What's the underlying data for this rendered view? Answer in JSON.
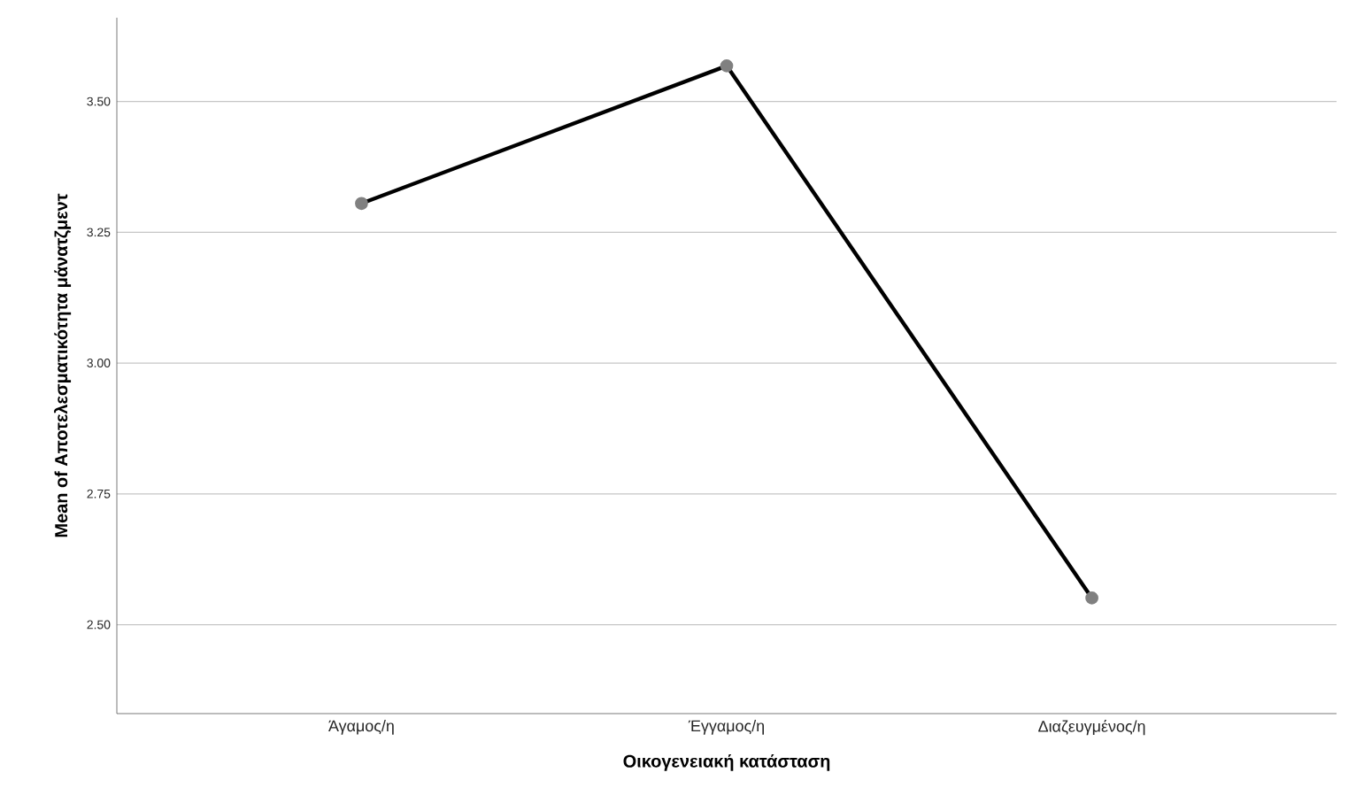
{
  "chart_data": {
    "type": "line",
    "xlabel": "Οικογενειακή κατάσταση",
    "ylabel": "Mean of Αποτελεσματικότητα μάνατζμεντ",
    "categories": [
      "Άγαμος/η",
      "Έγγαμος/η",
      "Διαζευγμένος/η"
    ],
    "series": [
      {
        "color": "#000000",
        "values": [
          3.305,
          3.568,
          2.551
        ]
      }
    ],
    "ylim": [
      2.33,
      3.66
    ],
    "yticks": [
      {
        "value": 2.5,
        "label": "2.50"
      },
      {
        "value": 2.75,
        "label": "2.75"
      },
      {
        "value": 3.0,
        "label": "3.00"
      },
      {
        "value": 3.25,
        "label": "3.25"
      },
      {
        "value": 3.5,
        "label": "3.50"
      }
    ],
    "grid": "y",
    "marker": "circle",
    "line_style": "solid"
  }
}
